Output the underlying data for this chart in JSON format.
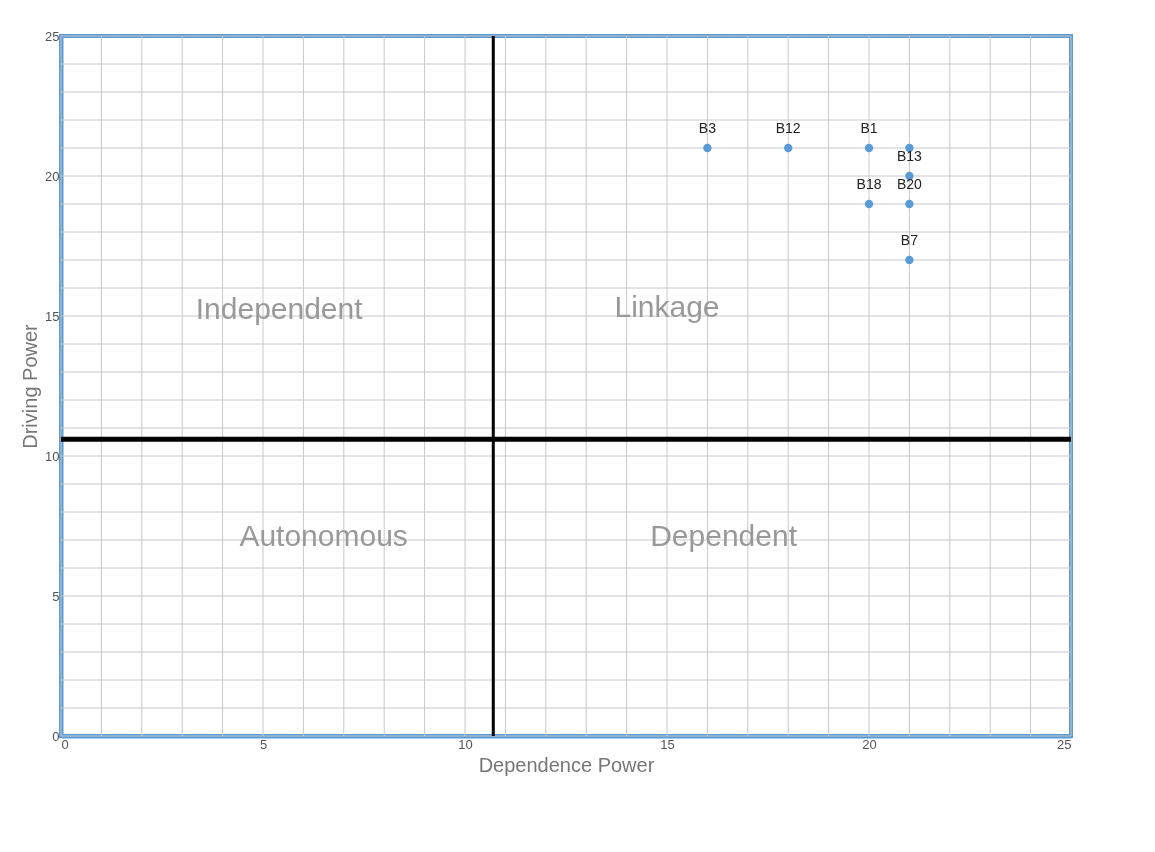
{
  "chart_data": {
    "type": "scatter",
    "xlabel": "Dependence Power",
    "ylabel": "Driving Power",
    "x": [
      16,
      18,
      20,
      20,
      21,
      21,
      21,
      21
    ],
    "series": [
      {
        "color": "#5b9bd5",
        "values": [
          21,
          21,
          21,
          19,
          21,
          20,
          19,
          17
        ]
      }
    ],
    "marker": "circle",
    "xlim": [
      0,
      25
    ],
    "ylim": [
      0,
      25
    ],
    "xticks": [
      0,
      {
        "value": 1,
        "label": null
      },
      {
        "value": 2,
        "label": null
      },
      {
        "value": 3,
        "label": null
      },
      {
        "value": 4,
        "label": null
      },
      5,
      {
        "value": 6,
        "label": null
      },
      {
        "value": 7,
        "label": null
      },
      {
        "value": 8,
        "label": null
      },
      {
        "value": 9,
        "label": null
      },
      10,
      {
        "value": 11,
        "label": null
      },
      {
        "value": 12,
        "label": null
      },
      {
        "value": 13,
        "label": null
      },
      {
        "value": 14,
        "label": null
      },
      15,
      {
        "value": 16,
        "label": null
      },
      {
        "value": 17,
        "label": null
      },
      {
        "value": 18,
        "label": null
      },
      {
        "value": 19,
        "label": null
      },
      20,
      {
        "value": 21,
        "label": null
      },
      {
        "value": 22,
        "label": null
      },
      {
        "value": 23,
        "label": null
      },
      {
        "value": 24,
        "label": null
      },
      25
    ],
    "yticks": [
      0,
      {
        "value": 1,
        "label": null
      },
      {
        "value": 2,
        "label": null
      },
      {
        "value": 3,
        "label": null
      },
      {
        "value": 4,
        "label": null
      },
      5,
      {
        "value": 6,
        "label": null
      },
      {
        "value": 7,
        "label": null
      },
      {
        "value": 8,
        "label": null
      },
      {
        "value": 9,
        "label": null
      },
      10,
      {
        "value": 11,
        "label": null
      },
      {
        "value": 12,
        "label": null
      },
      {
        "value": 13,
        "label": null
      },
      {
        "value": 14,
        "label": null
      },
      15,
      {
        "value": 16,
        "label": null
      },
      {
        "value": 17,
        "label": null
      },
      {
        "value": 18,
        "label": null
      },
      {
        "value": 19,
        "label": null
      },
      20,
      {
        "value": 21,
        "label": null
      },
      {
        "value": 22,
        "label": null
      },
      {
        "value": 23,
        "label": null
      },
      {
        "value": 24,
        "label": null
      },
      25
    ],
    "grid": true,
    "ref_lines": [
      {
        "axis": "x",
        "value": 10.7,
        "color": "#000000"
      },
      {
        "axis": "y",
        "value": 10.6,
        "color": "#000000"
      }
    ],
    "annotations": [
      {
        "text": "B3",
        "x": 16,
        "y": 21
      },
      {
        "text": "B12",
        "x": 18,
        "y": 21
      },
      {
        "text": "B1",
        "x": 20,
        "y": 21
      },
      {
        "text": "B18",
        "x": 20,
        "y": 19
      },
      {
        "text": "B13",
        "x": 21,
        "y": 20
      },
      {
        "text": "B20",
        "x": 21,
        "y": 19
      },
      {
        "text": "B7",
        "x": 21,
        "y": 17
      },
      "Independent",
      "Linkage",
      "Autonomous",
      "Dependent"
    ]
  }
}
